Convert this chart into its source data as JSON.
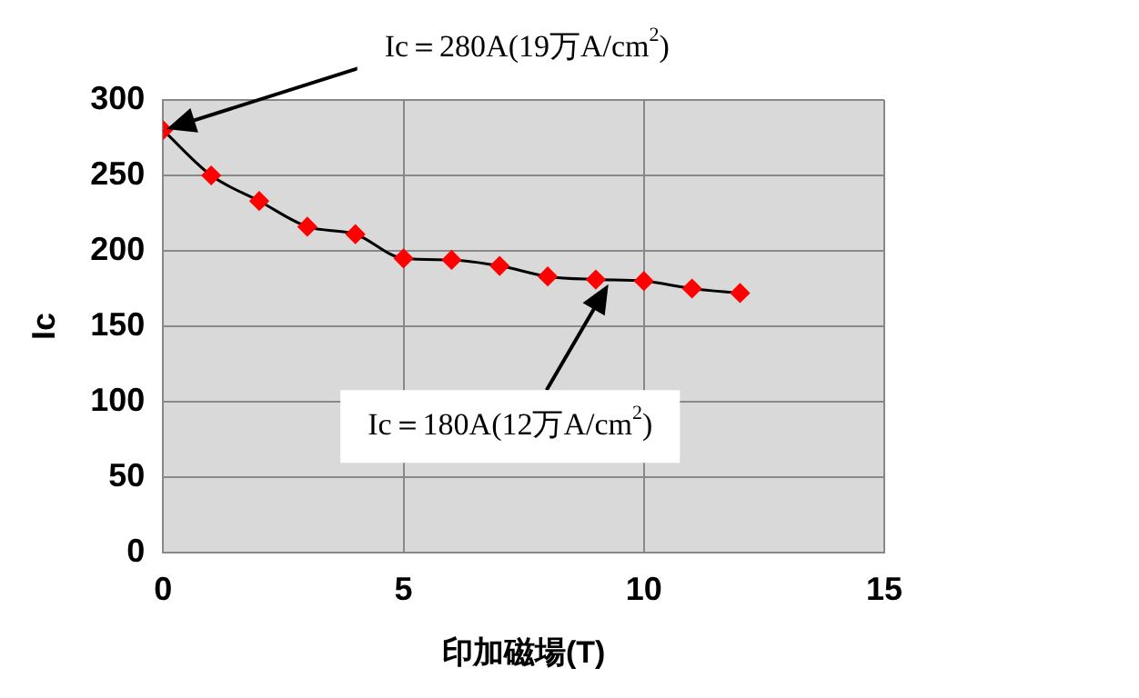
{
  "chart_data": {
    "type": "line",
    "xlabel": "印加磁場(T)",
    "ylabel": "Ic",
    "x": [
      0,
      1,
      2,
      3,
      4,
      5,
      6,
      7,
      8,
      9,
      10,
      11,
      12
    ],
    "series": [
      {
        "color": "#ff0000",
        "values": [
          280,
          250,
          233,
          216,
          211,
          195,
          194,
          190,
          183,
          181,
          180,
          175,
          172
        ]
      }
    ],
    "xlim": [
      0,
      15
    ],
    "xticks": [
      0,
      5,
      10,
      15
    ],
    "ylim": [
      0,
      300
    ],
    "yticks": [
      0,
      50,
      100,
      150,
      200,
      250,
      300
    ],
    "grid": true,
    "legend": false,
    "marker": "diamond",
    "line_style": "solid",
    "annotations": [
      {
        "text": "Ic＝280A(19万A/cm$^{2}$)",
        "x": 0,
        "y": 280
      },
      {
        "text": "Ic＝180A(12万A/cm$^{2}$)",
        "x": 9.3,
        "y": 180
      }
    ]
  }
}
